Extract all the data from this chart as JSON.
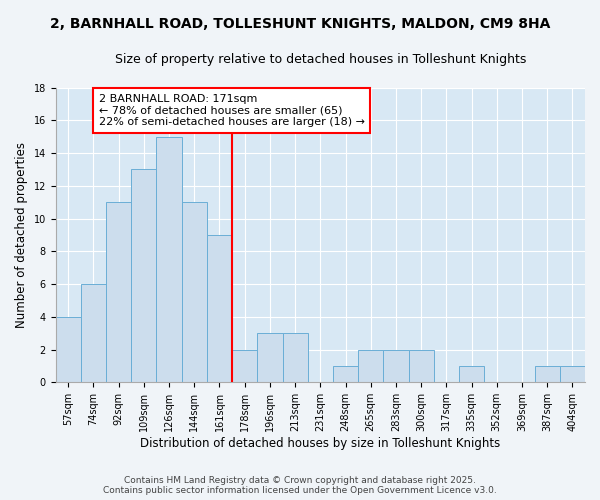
{
  "title": "2, BARNHALL ROAD, TOLLESHUNT KNIGHTS, MALDON, CM9 8HA",
  "subtitle": "Size of property relative to detached houses in Tolleshunt Knights",
  "xlabel": "Distribution of detached houses by size in Tolleshunt Knights",
  "ylabel": "Number of detached properties",
  "footer_line1": "Contains HM Land Registry data © Crown copyright and database right 2025.",
  "footer_line2": "Contains public sector information licensed under the Open Government Licence v3.0.",
  "bin_labels": [
    "57sqm",
    "74sqm",
    "92sqm",
    "109sqm",
    "126sqm",
    "144sqm",
    "161sqm",
    "178sqm",
    "196sqm",
    "213sqm",
    "231sqm",
    "248sqm",
    "265sqm",
    "283sqm",
    "300sqm",
    "317sqm",
    "335sqm",
    "352sqm",
    "369sqm",
    "387sqm",
    "404sqm"
  ],
  "bar_heights": [
    4,
    6,
    11,
    13,
    15,
    11,
    9,
    2,
    3,
    3,
    0,
    1,
    2,
    2,
    2,
    0,
    1,
    0,
    0,
    1,
    1
  ],
  "bar_color": "#ccdded",
  "bar_edge_color": "#6aaed6",
  "vline_x_index": 6.5,
  "vline_color": "red",
  "annotation_text": "2 BARNHALL ROAD: 171sqm\n← 78% of detached houses are smaller (65)\n22% of semi-detached houses are larger (18) →",
  "annotation_box_color": "white",
  "annotation_box_edge": "red",
  "ylim": [
    0,
    18
  ],
  "yticks": [
    0,
    2,
    4,
    6,
    8,
    10,
    12,
    14,
    16,
    18
  ],
  "fig_background_color": "#f0f4f8",
  "plot_background_color": "#d8e8f4",
  "grid_color": "white",
  "title_fontsize": 10,
  "subtitle_fontsize": 9,
  "axis_label_fontsize": 8.5,
  "tick_fontsize": 7,
  "annotation_fontsize": 8,
  "footer_fontsize": 6.5
}
